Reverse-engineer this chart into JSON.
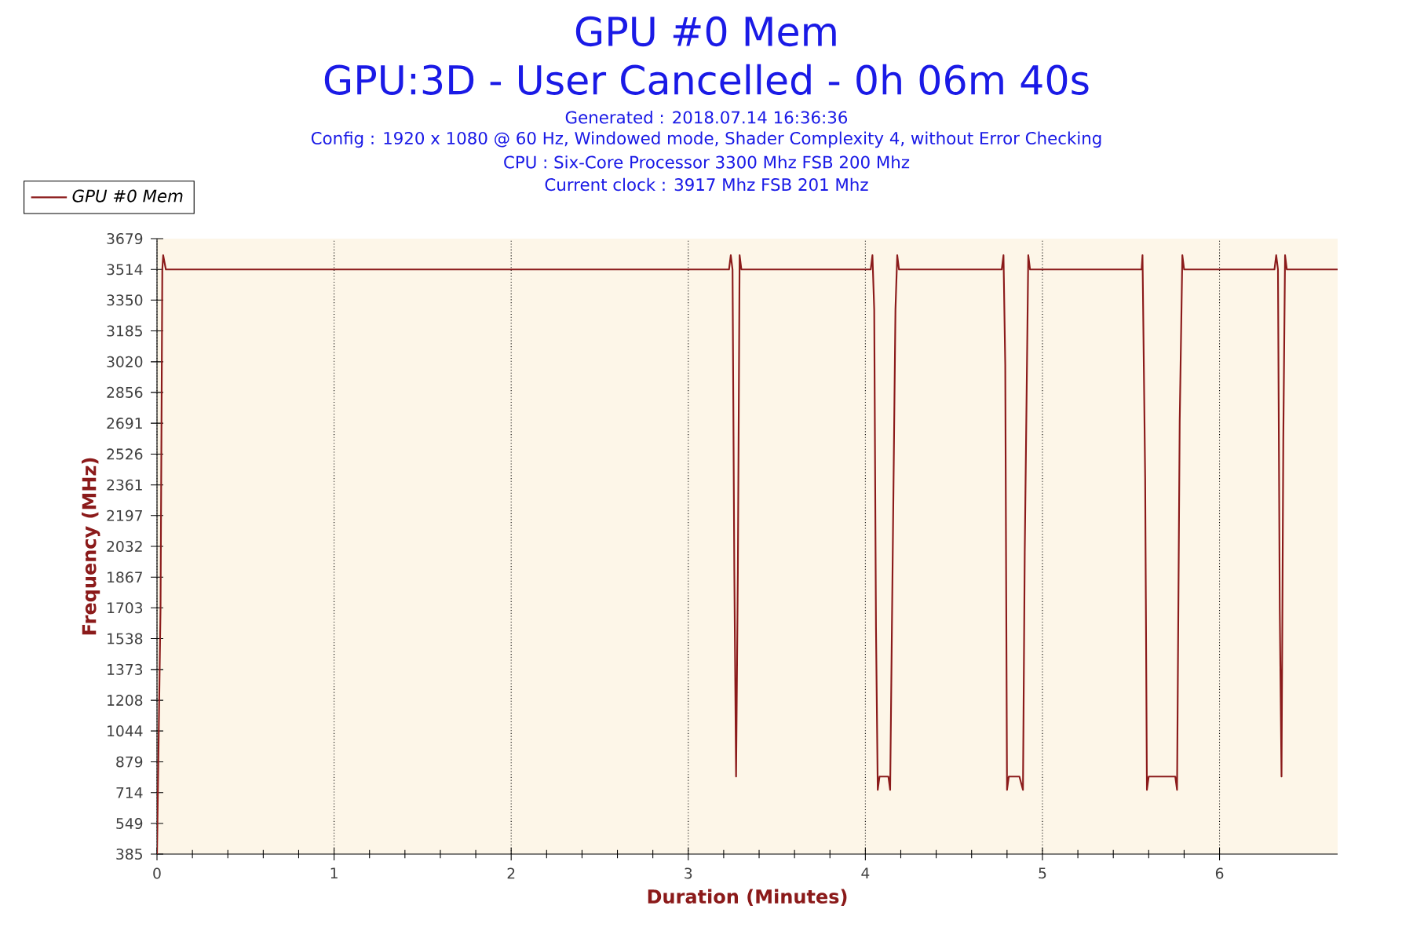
{
  "chart_data": {
    "type": "line",
    "title": "GPU #0 Mem",
    "subtitle": "GPU:3D - User Cancelled - 0h 06m 40s",
    "annotations": [
      "Generated : 2018.07.14 16:36:36",
      "Config : 1920 x 1080 @ 60 Hz, Windowed mode, Shader Complexity 4, without Error Checking",
      "CPU : Six-Core Processor 3300 Mhz FSB 200 Mhz",
      "Current clock : 3917 Mhz FSB 201 Mhz"
    ],
    "xlabel": "Duration (Minutes)",
    "ylabel": "Frequency (MHz)",
    "xlim": [
      0,
      6.667
    ],
    "xticks": [
      0,
      1,
      2,
      3,
      4,
      5,
      6
    ],
    "ylim": [
      385,
      3679
    ],
    "yticks": [
      385,
      549,
      714,
      879,
      1044,
      1208,
      1373,
      1538,
      1703,
      1867,
      2032,
      2197,
      2361,
      2526,
      2691,
      2856,
      3020,
      3185,
      3350,
      3514,
      3679
    ],
    "grid": "x",
    "legend": "top left",
    "series": [
      {
        "name": "GPU #0 Mem",
        "color": "#8b1a1a",
        "x": [
          0,
          0.02,
          0.03,
          0.035,
          0.05,
          3.23,
          3.24,
          3.25,
          3.26,
          3.27,
          3.28,
          3.29,
          3.3,
          4.03,
          4.04,
          4.05,
          4.06,
          4.07,
          4.08,
          4.13,
          4.14,
          4.15,
          4.17,
          4.18,
          4.19,
          4.77,
          4.78,
          4.79,
          4.8,
          4.81,
          4.87,
          4.89,
          4.9,
          4.92,
          4.93,
          5.56,
          5.565,
          5.58,
          5.59,
          5.6,
          5.75,
          5.76,
          5.775,
          5.79,
          5.8,
          6.31,
          6.32,
          6.33,
          6.34,
          6.35,
          6.36,
          6.37,
          6.38,
          6.667
        ],
        "values": [
          385,
          1703,
          3514,
          3590,
          3514,
          3514,
          3590,
          3514,
          1900,
          800,
          1900,
          3590,
          3514,
          3514,
          3590,
          3300,
          1600,
          729,
          800,
          800,
          729,
          1600,
          3300,
          3590,
          3514,
          3514,
          3590,
          3000,
          729,
          800,
          800,
          729,
          2000,
          3590,
          3514,
          3514,
          3590,
          2400,
          729,
          800,
          800,
          729,
          2700,
          3590,
          3514,
          3514,
          3590,
          3514,
          1700,
          800,
          2600,
          3590,
          3514,
          3514
        ]
      }
    ]
  }
}
